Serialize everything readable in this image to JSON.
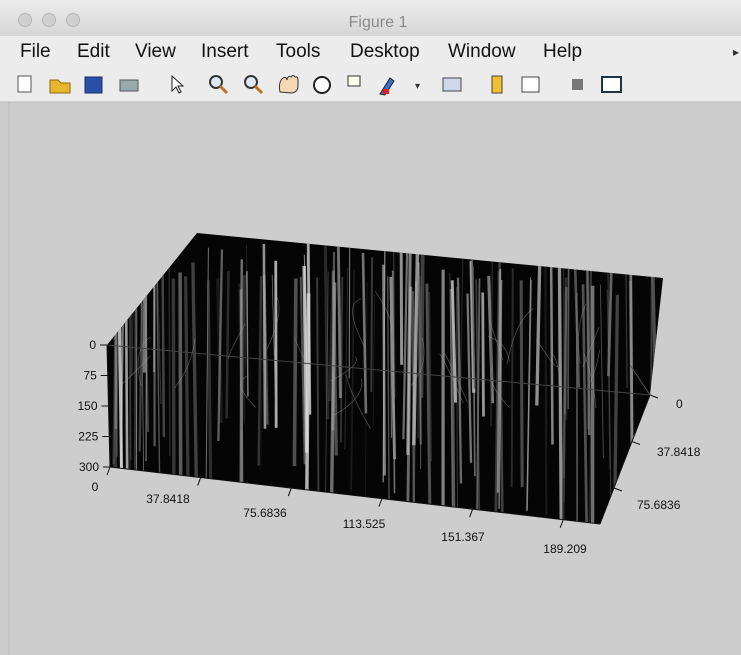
{
  "window": {
    "title": "Figure 1"
  },
  "menu": [
    "File",
    "Edit",
    "View",
    "Insert",
    "Tools",
    "Desktop",
    "Window",
    "Help"
  ],
  "axes": {
    "z_ticks": [
      "0",
      "75",
      "150",
      "225",
      "300"
    ],
    "x_ticks": [
      "0",
      "37.8418",
      "75.6836",
      "113.525",
      "151.367",
      "189.209"
    ],
    "y_ticks": [
      "0",
      "37.8418",
      "75.6836"
    ]
  }
}
